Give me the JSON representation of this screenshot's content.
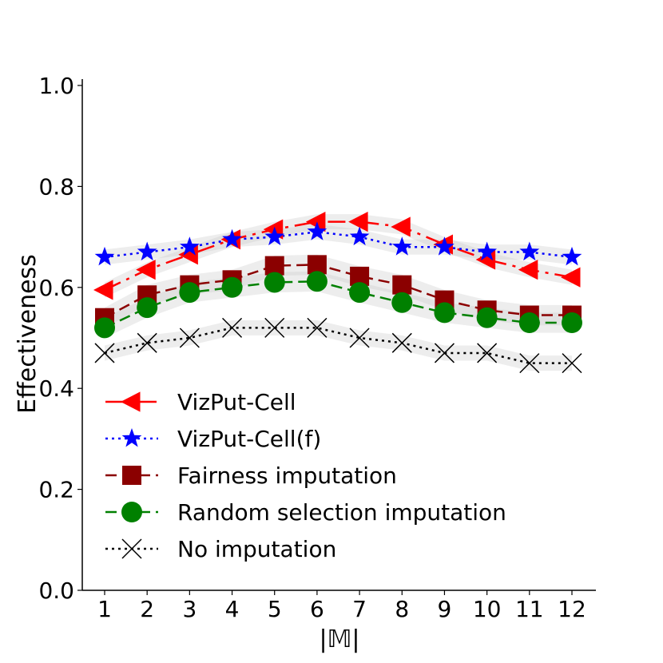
{
  "chart_data": {
    "type": "line",
    "title": "",
    "xlabel": "|𝕄|",
    "ylabel": "Effectiveness",
    "x": [
      1,
      2,
      3,
      4,
      5,
      6,
      7,
      8,
      9,
      10,
      11,
      12
    ],
    "xticks": [
      "1",
      "2",
      "3",
      "4",
      "5",
      "6",
      "7",
      "8",
      "9",
      "10",
      "11",
      "12"
    ],
    "yticks": [
      "0.0",
      "0.2",
      "0.4",
      "0.6",
      "0.8",
      "1.0"
    ],
    "ylim": [
      0,
      1
    ],
    "grid": false,
    "legend_position": "lower-left",
    "series": [
      {
        "name": "VizPut-Cell",
        "color": "#ff0000",
        "marker": "triangle-left",
        "linestyle": "dashdot",
        "values": [
          0.595,
          0.635,
          0.665,
          0.695,
          0.715,
          0.73,
          0.73,
          0.72,
          0.685,
          0.655,
          0.635,
          0.62
        ],
        "band": 0.015
      },
      {
        "name": "VizPut-Cell(f)",
        "color": "#0000ff",
        "marker": "star",
        "linestyle": "dotted",
        "values": [
          0.66,
          0.67,
          0.68,
          0.695,
          0.7,
          0.71,
          0.7,
          0.68,
          0.68,
          0.67,
          0.67,
          0.66
        ],
        "band": 0.015
      },
      {
        "name": "Fairness imputation",
        "color": "#8b0000",
        "marker": "square",
        "linestyle": "dashed",
        "values": [
          0.54,
          0.585,
          0.605,
          0.615,
          0.643,
          0.645,
          0.622,
          0.605,
          0.575,
          0.555,
          0.545,
          0.545
        ],
        "band": 0.02
      },
      {
        "name": "Random selection imputation",
        "color": "#008000",
        "marker": "circle",
        "linestyle": "dashed",
        "values": [
          0.52,
          0.56,
          0.59,
          0.6,
          0.61,
          0.612,
          0.59,
          0.57,
          0.55,
          0.54,
          0.53,
          0.53
        ],
        "band": 0.02
      },
      {
        "name": "No imputation",
        "color": "#000000",
        "marker": "x",
        "linestyle": "dotted",
        "values": [
          0.47,
          0.49,
          0.5,
          0.52,
          0.52,
          0.52,
          0.5,
          0.49,
          0.47,
          0.47,
          0.45,
          0.45
        ],
        "band": 0.015
      }
    ]
  }
}
